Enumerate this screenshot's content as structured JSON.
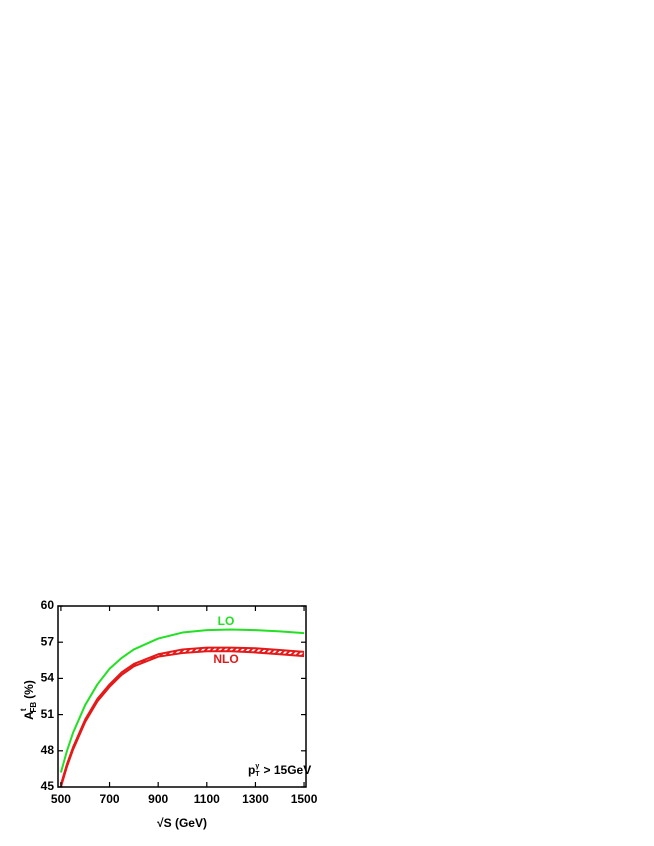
{
  "chart_data": {
    "type": "line",
    "x_label": "√S (GeV)",
    "y_label": {
      "main": "A",
      "sup": "t",
      "sub": "FB",
      "unit": "(%)"
    },
    "annotations": [
      "LO",
      "NLO"
    ],
    "cut_label": {
      "main": "p",
      "sup": "γ",
      "sub": "T",
      "rest": "> 15GeV"
    },
    "x": [
      500,
      525,
      550,
      600,
      650,
      700,
      750,
      800,
      900,
      1000,
      1100,
      1200,
      1300,
      1400,
      1500
    ],
    "series": [
      {
        "color": "#22e022",
        "values": [
          46.2,
          48.0,
          49.5,
          51.8,
          53.5,
          54.8,
          55.7,
          56.4,
          57.3,
          57.8,
          58.0,
          58.05,
          58.0,
          57.9,
          57.75
        ]
      },
      {
        "color": "#e41a1a",
        "values": [
          45.2,
          46.9,
          48.3,
          50.6,
          52.3,
          53.5,
          54.5,
          55.2,
          56.0,
          56.4,
          56.55,
          56.55,
          56.5,
          56.35,
          56.2
        ]
      },
      {
        "color": "#e41a1a",
        "values": [
          45.0,
          46.7,
          48.1,
          50.4,
          52.1,
          53.3,
          54.3,
          55.0,
          55.8,
          56.1,
          56.25,
          56.25,
          56.15,
          56.0,
          55.85
        ]
      }
    ],
    "xlim": [
      488,
      1508
    ],
    "ylim": [
      45,
      60
    ],
    "xticks": [
      500,
      700,
      900,
      1100,
      1300,
      1500
    ],
    "yticks": [
      45,
      48,
      51,
      54,
      57,
      60
    ]
  }
}
